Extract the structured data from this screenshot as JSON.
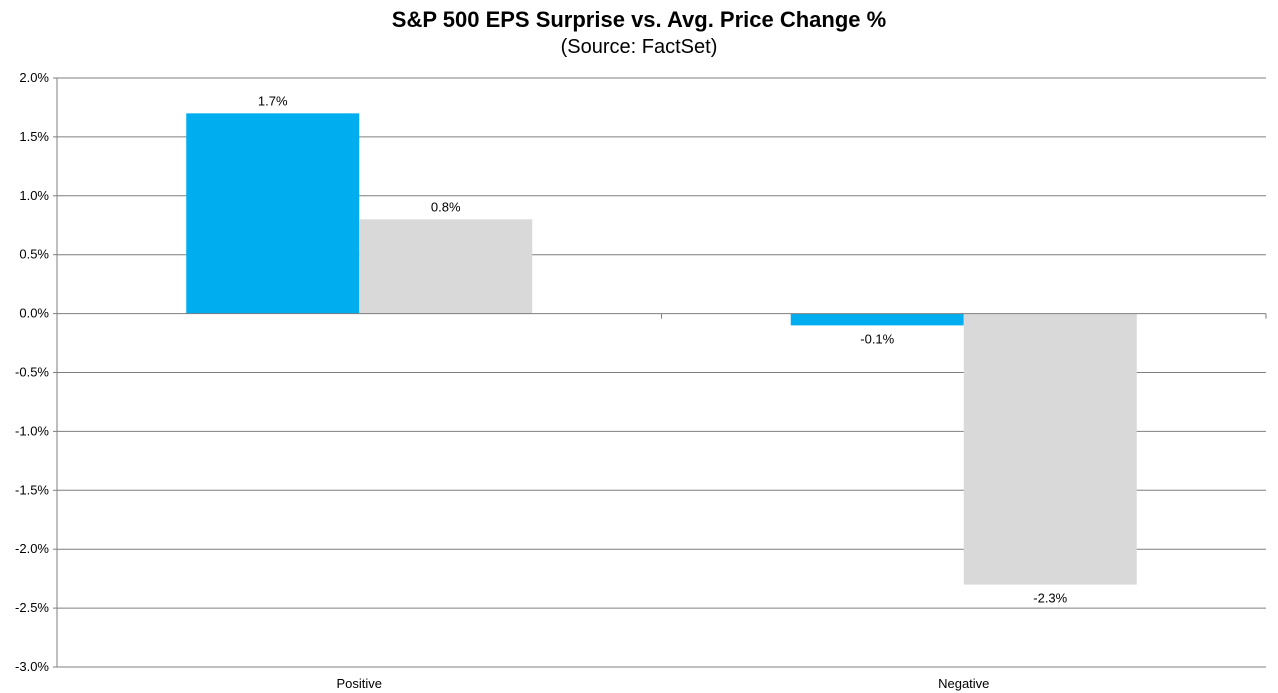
{
  "chart_data": {
    "type": "bar",
    "title": "S&P 500 EPS Surprise vs. Avg. Price Change %",
    "subtitle": "(Source: FactSet)",
    "categories": [
      "Positive",
      "Negative"
    ],
    "series": [
      {
        "values": [
          1.7,
          -0.1
        ],
        "labels": [
          "1.7%",
          "-0.1%"
        ],
        "color": "#00aeef"
      },
      {
        "values": [
          0.8,
          -2.3
        ],
        "labels": [
          "0.8%",
          "-2.3%"
        ],
        "color": "#d9d9d9"
      }
    ],
    "ylim": [
      -3.0,
      2.0
    ],
    "yticks": [
      2.0,
      1.5,
      1.0,
      0.5,
      0.0,
      -0.5,
      -1.0,
      -1.5,
      -2.0,
      -2.5,
      -3.0
    ],
    "ytick_labels": [
      "2.0%",
      "1.5%",
      "1.0%",
      "0.5%",
      "0.0%",
      "-0.5%",
      "-1.0%",
      "-1.5%",
      "-2.0%",
      "-2.5%",
      "-3.0%"
    ],
    "grid": true,
    "legend": "none"
  }
}
